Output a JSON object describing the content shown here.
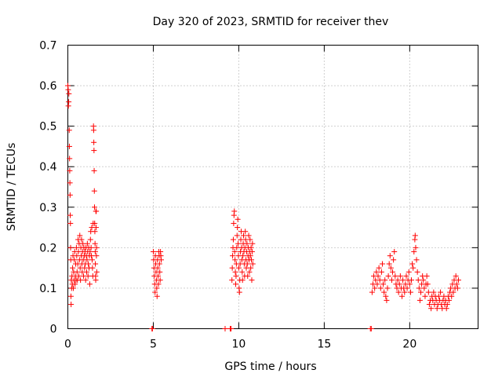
{
  "chart_data": {
    "type": "scatter",
    "title": "Day 320 of 2023, SRMTID for receiver thev",
    "xlabel": "GPS time / hours",
    "ylabel": "SRMTID / TECUs",
    "xlim": [
      0,
      24
    ],
    "ylim": [
      0,
      0.7
    ],
    "xticks": [
      0,
      5,
      10,
      15,
      20
    ],
    "yticks": [
      0,
      0.1,
      0.2,
      0.3,
      0.4,
      0.5,
      0.6,
      0.7
    ],
    "xtick_labels": [
      "0",
      "5",
      "10",
      "15",
      "20"
    ],
    "ytick_labels": [
      "0",
      "0.1",
      "0.2",
      "0.3",
      "0.4",
      "0.5",
      "0.6",
      "0.7"
    ],
    "grid": true,
    "marker": "+",
    "color": "#ff0000",
    "series": [
      {
        "name": "SRMTID",
        "points": [
          [
            0.0,
            0.6
          ],
          [
            0.02,
            0.59
          ],
          [
            0.03,
            0.55
          ],
          [
            0.05,
            0.56
          ],
          [
            0.06,
            0.58
          ],
          [
            0.08,
            0.49
          ],
          [
            0.09,
            0.45
          ],
          [
            0.1,
            0.42
          ],
          [
            0.11,
            0.39
          ],
          [
            0.12,
            0.36
          ],
          [
            0.13,
            0.33
          ],
          [
            0.14,
            0.28
          ],
          [
            0.15,
            0.26
          ],
          [
            0.16,
            0.2
          ],
          [
            0.17,
            0.17
          ],
          [
            0.18,
            0.08
          ],
          [
            0.19,
            0.06
          ],
          [
            0.2,
            0.12
          ],
          [
            0.22,
            0.1
          ],
          [
            0.24,
            0.13
          ],
          [
            0.26,
            0.11
          ],
          [
            0.28,
            0.15
          ],
          [
            0.3,
            0.18
          ],
          [
            0.32,
            0.1
          ],
          [
            0.34,
            0.14
          ],
          [
            0.36,
            0.12
          ],
          [
            0.38,
            0.17
          ],
          [
            0.4,
            0.19
          ],
          [
            0.42,
            0.11
          ],
          [
            0.44,
            0.13
          ],
          [
            0.46,
            0.16
          ],
          [
            0.48,
            0.12
          ],
          [
            0.5,
            0.2
          ],
          [
            0.52,
            0.18
          ],
          [
            0.54,
            0.14
          ],
          [
            0.56,
            0.12
          ],
          [
            0.58,
            0.16
          ],
          [
            0.6,
            0.22
          ],
          [
            0.62,
            0.19
          ],
          [
            0.64,
            0.13
          ],
          [
            0.66,
            0.21
          ],
          [
            0.68,
            0.17
          ],
          [
            0.7,
            0.23
          ],
          [
            0.72,
            0.15
          ],
          [
            0.74,
            0.12
          ],
          [
            0.76,
            0.2
          ],
          [
            0.78,
            0.18
          ],
          [
            0.8,
            0.22
          ],
          [
            0.82,
            0.16
          ],
          [
            0.84,
            0.14
          ],
          [
            0.86,
            0.19
          ],
          [
            0.88,
            0.21
          ],
          [
            0.9,
            0.17
          ],
          [
            0.92,
            0.13
          ],
          [
            0.94,
            0.2
          ],
          [
            0.96,
            0.18
          ],
          [
            0.98,
            0.15
          ],
          [
            1.0,
            0.19
          ],
          [
            1.02,
            0.16
          ],
          [
            1.04,
            0.12
          ],
          [
            1.06,
            0.2
          ],
          [
            1.08,
            0.18
          ],
          [
            1.1,
            0.14
          ],
          [
            1.12,
            0.17
          ],
          [
            1.14,
            0.21
          ],
          [
            1.16,
            0.19
          ],
          [
            1.18,
            0.13
          ],
          [
            1.2,
            0.16
          ],
          [
            1.22,
            0.2
          ],
          [
            1.24,
            0.15
          ],
          [
            1.26,
            0.18
          ],
          [
            1.28,
            0.11
          ],
          [
            1.3,
            0.19
          ],
          [
            1.32,
            0.22
          ],
          [
            1.34,
            0.24
          ],
          [
            1.36,
            0.2
          ],
          [
            1.38,
            0.18
          ],
          [
            1.4,
            0.25
          ],
          [
            1.42,
            0.17
          ],
          [
            1.44,
            0.15
          ],
          [
            1.46,
            0.13
          ],
          [
            1.48,
            0.26
          ],
          [
            1.5,
            0.5
          ],
          [
            1.51,
            0.49
          ],
          [
            1.52,
            0.46
          ],
          [
            1.53,
            0.44
          ],
          [
            1.54,
            0.39
          ],
          [
            1.55,
            0.34
          ],
          [
            1.56,
            0.3
          ],
          [
            1.57,
            0.26
          ],
          [
            1.58,
            0.24
          ],
          [
            1.59,
            0.21
          ],
          [
            1.6,
            0.19
          ],
          [
            1.61,
            0.16
          ],
          [
            1.62,
            0.13
          ],
          [
            1.63,
            0.12
          ],
          [
            1.64,
            0.29
          ],
          [
            1.65,
            0.25
          ],
          [
            1.66,
            0.29
          ],
          [
            1.67,
            0.18
          ],
          [
            1.68,
            0.2
          ],
          [
            1.69,
            0.14
          ],
          [
            4.92,
            0.0
          ],
          [
            4.95,
            0.0
          ],
          [
            5.0,
            0.19
          ],
          [
            5.02,
            0.17
          ],
          [
            5.04,
            0.15
          ],
          [
            5.06,
            0.13
          ],
          [
            5.08,
            0.11
          ],
          [
            5.1,
            0.09
          ],
          [
            5.12,
            0.18
          ],
          [
            5.14,
            0.16
          ],
          [
            5.16,
            0.14
          ],
          [
            5.18,
            0.12
          ],
          [
            5.2,
            0.1
          ],
          [
            5.22,
            0.08
          ],
          [
            5.24,
            0.17
          ],
          [
            5.26,
            0.15
          ],
          [
            5.28,
            0.13
          ],
          [
            5.3,
            0.11
          ],
          [
            5.32,
            0.19
          ],
          [
            5.34,
            0.18
          ],
          [
            5.36,
            0.16
          ],
          [
            5.38,
            0.14
          ],
          [
            5.4,
            0.12
          ],
          [
            5.42,
            0.19
          ],
          [
            5.44,
            0.18
          ],
          [
            5.46,
            0.17
          ],
          [
            9.2,
            0.0
          ],
          [
            9.5,
            0.0
          ],
          [
            9.55,
            0.0
          ],
          [
            9.6,
            0.12
          ],
          [
            9.62,
            0.15
          ],
          [
            9.64,
            0.18
          ],
          [
            9.66,
            0.2
          ],
          [
            9.68,
            0.22
          ],
          [
            9.7,
            0.26
          ],
          [
            9.72,
            0.28
          ],
          [
            9.74,
            0.29
          ],
          [
            9.76,
            0.19
          ],
          [
            9.78,
            0.17
          ],
          [
            9.8,
            0.14
          ],
          [
            9.82,
            0.11
          ],
          [
            9.84,
            0.13
          ],
          [
            9.86,
            0.16
          ],
          [
            9.88,
            0.2
          ],
          [
            9.9,
            0.23
          ],
          [
            9.92,
            0.25
          ],
          [
            9.94,
            0.27
          ],
          [
            9.96,
            0.21
          ],
          [
            9.98,
            0.18
          ],
          [
            10.0,
            0.15
          ],
          [
            10.02,
            0.1
          ],
          [
            10.04,
            0.09
          ],
          [
            10.06,
            0.12
          ],
          [
            10.08,
            0.16
          ],
          [
            10.1,
            0.19
          ],
          [
            10.12,
            0.22
          ],
          [
            10.14,
            0.24
          ],
          [
            10.16,
            0.2
          ],
          [
            10.18,
            0.17
          ],
          [
            10.2,
            0.14
          ],
          [
            10.22,
            0.12
          ],
          [
            10.24,
            0.18
          ],
          [
            10.26,
            0.21
          ],
          [
            10.28,
            0.23
          ],
          [
            10.3,
            0.19
          ],
          [
            10.32,
            0.16
          ],
          [
            10.34,
            0.13
          ],
          [
            10.36,
            0.2
          ],
          [
            10.38,
            0.24
          ],
          [
            10.4,
            0.22
          ],
          [
            10.42,
            0.17
          ],
          [
            10.44,
            0.15
          ],
          [
            10.46,
            0.19
          ],
          [
            10.48,
            0.21
          ],
          [
            10.5,
            0.16
          ],
          [
            10.52,
            0.13
          ],
          [
            10.54,
            0.18
          ],
          [
            10.56,
            0.2
          ],
          [
            10.58,
            0.23
          ],
          [
            10.6,
            0.17
          ],
          [
            10.62,
            0.14
          ],
          [
            10.64,
            0.19
          ],
          [
            10.66,
            0.22
          ],
          [
            10.68,
            0.18
          ],
          [
            10.7,
            0.15
          ],
          [
            10.72,
            0.2
          ],
          [
            10.74,
            0.17
          ],
          [
            10.76,
            0.12
          ],
          [
            10.78,
            0.19
          ],
          [
            10.8,
            0.21
          ],
          [
            10.82,
            0.16
          ],
          [
            17.7,
            0.0
          ],
          [
            17.75,
            0.0
          ],
          [
            17.8,
            0.09
          ],
          [
            17.85,
            0.11
          ],
          [
            17.9,
            0.13
          ],
          [
            17.95,
            0.1
          ],
          [
            18.0,
            0.12
          ],
          [
            18.05,
            0.14
          ],
          [
            18.1,
            0.11
          ],
          [
            18.15,
            0.13
          ],
          [
            18.2,
            0.15
          ],
          [
            18.25,
            0.12
          ],
          [
            18.3,
            0.1
          ],
          [
            18.35,
            0.14
          ],
          [
            18.4,
            0.16
          ],
          [
            18.45,
            0.11
          ],
          [
            18.5,
            0.09
          ],
          [
            18.55,
            0.12
          ],
          [
            18.6,
            0.08
          ],
          [
            18.65,
            0.07
          ],
          [
            18.7,
            0.1
          ],
          [
            18.75,
            0.13
          ],
          [
            18.8,
            0.16
          ],
          [
            18.85,
            0.18
          ],
          [
            18.9,
            0.15
          ],
          [
            18.95,
            0.12
          ],
          [
            19.0,
            0.14
          ],
          [
            19.05,
            0.17
          ],
          [
            19.1,
            0.19
          ],
          [
            19.15,
            0.13
          ],
          [
            19.2,
            0.11
          ],
          [
            19.25,
            0.1
          ],
          [
            19.3,
            0.12
          ],
          [
            19.35,
            0.09
          ],
          [
            19.4,
            0.11
          ],
          [
            19.45,
            0.13
          ],
          [
            19.5,
            0.1
          ],
          [
            19.55,
            0.08
          ],
          [
            19.6,
            0.12
          ],
          [
            19.65,
            0.1
          ],
          [
            19.7,
            0.09
          ],
          [
            19.75,
            0.11
          ],
          [
            19.8,
            0.13
          ],
          [
            19.85,
            0.1
          ],
          [
            19.9,
            0.12
          ],
          [
            19.95,
            0.14
          ],
          [
            20.0,
            0.11
          ],
          [
            20.05,
            0.09
          ],
          [
            20.1,
            0.12
          ],
          [
            20.15,
            0.16
          ],
          [
            20.2,
            0.15
          ],
          [
            20.25,
            0.19
          ],
          [
            20.3,
            0.22
          ],
          [
            20.32,
            0.23
          ],
          [
            20.35,
            0.2
          ],
          [
            20.4,
            0.17
          ],
          [
            20.45,
            0.14
          ],
          [
            20.5,
            0.12
          ],
          [
            20.55,
            0.1
          ],
          [
            20.6,
            0.07
          ],
          [
            20.65,
            0.09
          ],
          [
            20.7,
            0.11
          ],
          [
            20.75,
            0.13
          ],
          [
            20.8,
            0.12
          ],
          [
            20.85,
            0.1
          ],
          [
            20.9,
            0.08
          ],
          [
            20.95,
            0.11
          ],
          [
            21.0,
            0.13
          ],
          [
            21.05,
            0.11
          ],
          [
            21.1,
            0.09
          ],
          [
            21.15,
            0.06
          ],
          [
            21.2,
            0.07
          ],
          [
            21.25,
            0.05
          ],
          [
            21.3,
            0.08
          ],
          [
            21.35,
            0.07
          ],
          [
            21.4,
            0.09
          ],
          [
            21.45,
            0.06
          ],
          [
            21.5,
            0.08
          ],
          [
            21.55,
            0.07
          ],
          [
            21.6,
            0.05
          ],
          [
            21.65,
            0.06
          ],
          [
            21.7,
            0.08
          ],
          [
            21.75,
            0.07
          ],
          [
            21.8,
            0.09
          ],
          [
            21.85,
            0.06
          ],
          [
            21.9,
            0.05
          ],
          [
            21.95,
            0.07
          ],
          [
            22.0,
            0.08
          ],
          [
            22.05,
            0.06
          ],
          [
            22.1,
            0.07
          ],
          [
            22.15,
            0.05
          ],
          [
            22.2,
            0.06
          ],
          [
            22.25,
            0.08
          ],
          [
            22.3,
            0.07
          ],
          [
            22.35,
            0.09
          ],
          [
            22.4,
            0.1
          ],
          [
            22.45,
            0.08
          ],
          [
            22.5,
            0.11
          ],
          [
            22.55,
            0.09
          ],
          [
            22.6,
            0.12
          ],
          [
            22.65,
            0.1
          ],
          [
            22.7,
            0.13
          ],
          [
            22.75,
            0.11
          ],
          [
            22.8,
            0.1
          ],
          [
            22.85,
            0.12
          ]
        ]
      }
    ]
  }
}
